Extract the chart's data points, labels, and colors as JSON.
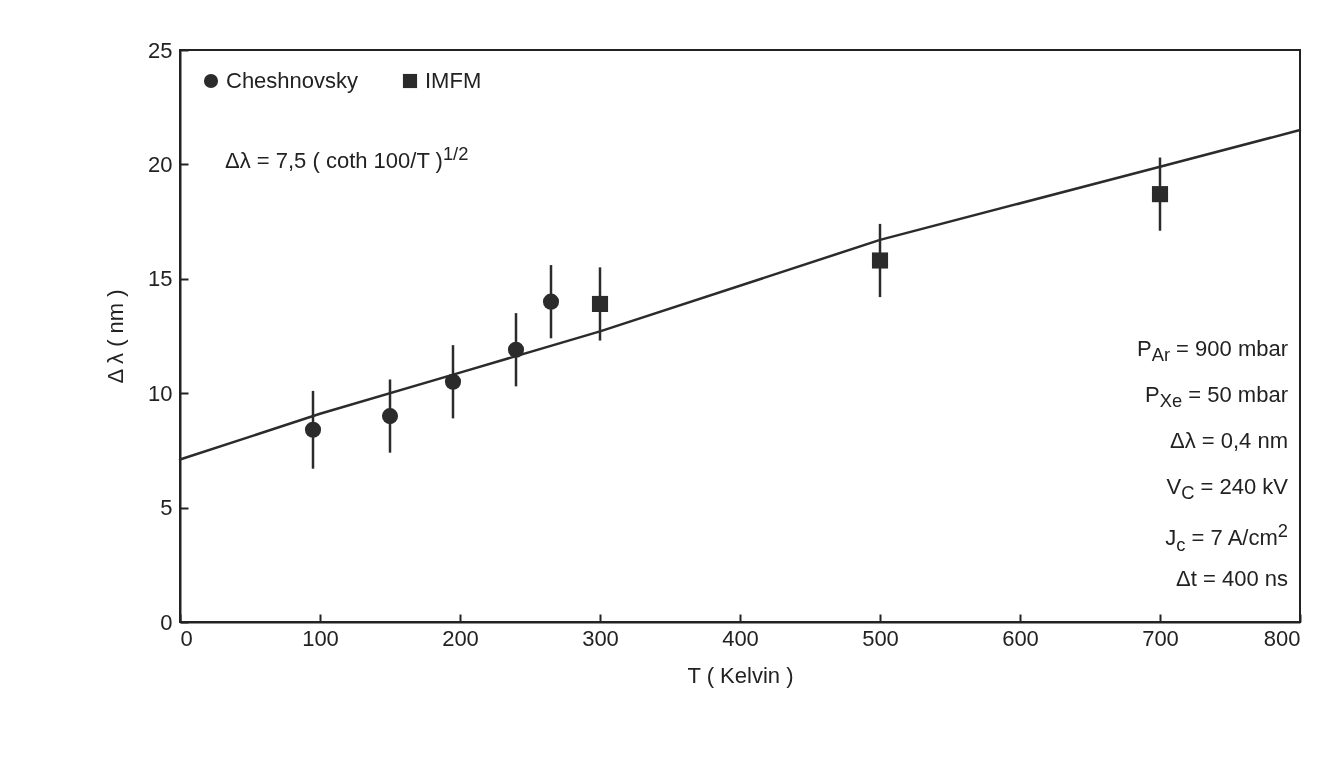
{
  "chart_data": {
    "type": "scatter",
    "xlabel": "T   ( Kelvin )",
    "ylabel": "Δ λ   ( nm )",
    "xlim": [
      0,
      800
    ],
    "ylim": [
      0,
      25
    ],
    "xticks": [
      0,
      100,
      200,
      300,
      400,
      500,
      600,
      700,
      800
    ],
    "yticks": [
      0,
      5,
      10,
      15,
      20,
      25
    ],
    "grid": false,
    "legend": "top left",
    "series": [
      {
        "name": "Cheshnovsky",
        "type": "scatter",
        "marker": "circle",
        "color": "#2b2b2b",
        "x": [
          95,
          150,
          195,
          240,
          265
        ],
        "values": [
          8.4,
          9.0,
          10.5,
          11.9,
          14.0
        ],
        "errors": [
          1.7,
          1.6,
          1.6,
          1.6,
          1.6
        ]
      },
      {
        "name": "IMFM",
        "type": "scatter",
        "marker": "square",
        "color": "#2b2b2b",
        "x": [
          300,
          500,
          700
        ],
        "values": [
          13.9,
          15.8,
          18.7
        ],
        "errors": [
          1.6,
          1.6,
          1.6
        ]
      },
      {
        "type": "line",
        "color": "#2b2b2b",
        "line_style": "solid",
        "x": [
          0,
          100,
          200,
          300,
          500,
          700,
          800
        ],
        "values": [
          7.1,
          9.1,
          10.9,
          12.7,
          16.7,
          19.9,
          21.5
        ]
      }
    ],
    "annotations": [
      "Δλ = 7,5 ( coth 100/T )$^{1/2}$",
      "P$_{Ar}$ = 900 mbar",
      "P$_{Xe}$ = 50 mbar",
      "Δλ = 0,4 nm",
      "V$_{C}$ = 240 kV",
      "J$_{c}$ = 7 A/cm$^{2}$",
      "Δt = 400 ns"
    ]
  }
}
